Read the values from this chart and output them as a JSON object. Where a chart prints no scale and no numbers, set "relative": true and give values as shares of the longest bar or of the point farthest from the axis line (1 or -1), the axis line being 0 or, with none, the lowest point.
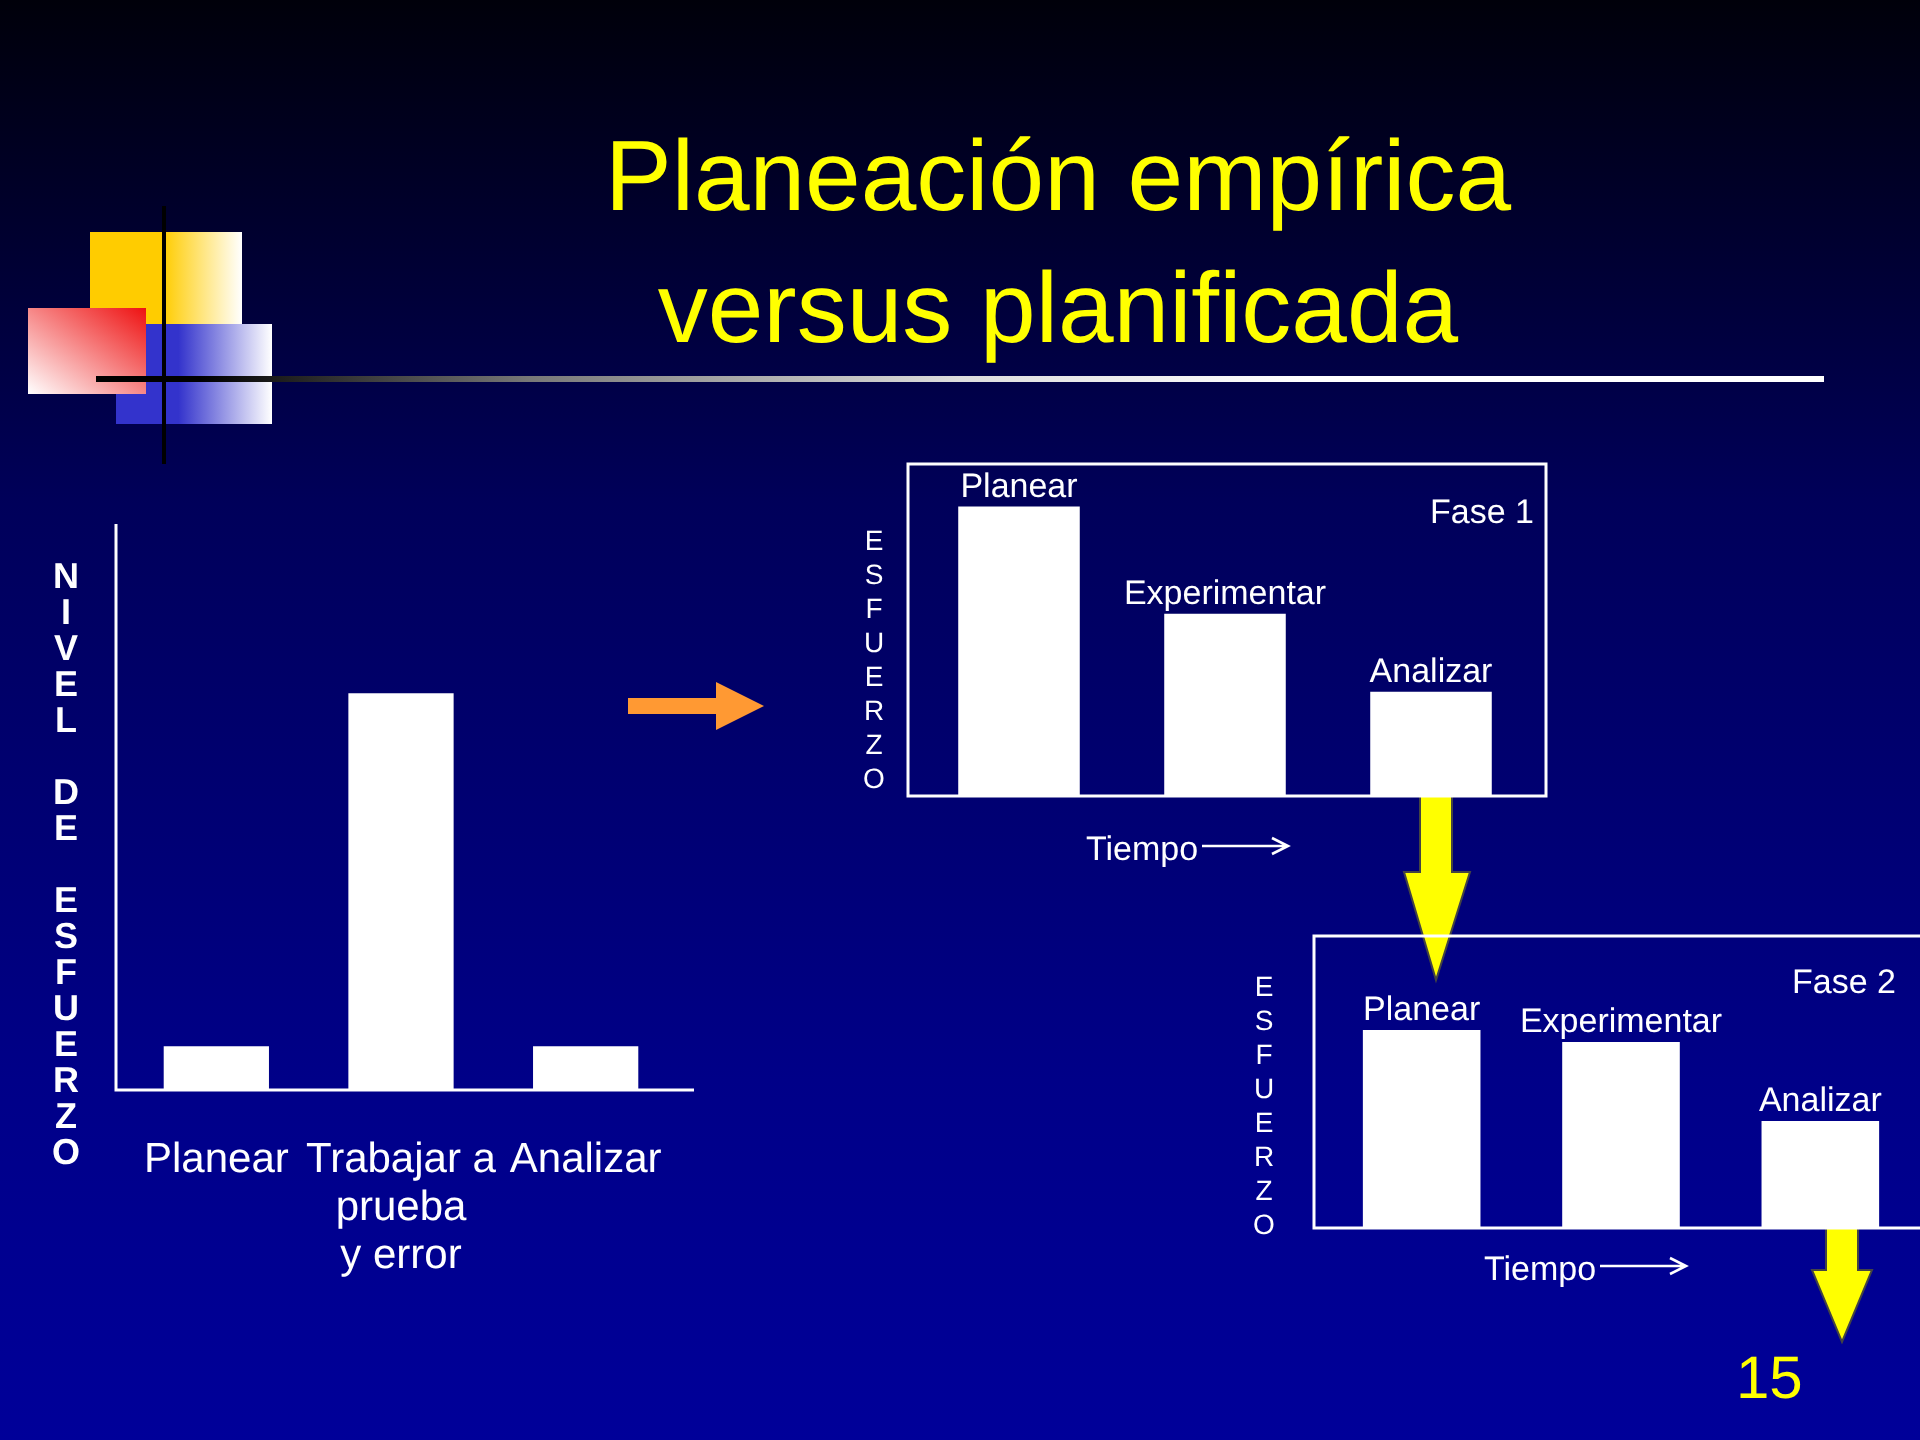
{
  "chart_data": [
    {
      "type": "other",
      "title": "Planeación empírica versus planificada",
      "annotations": [
        "15"
      ]
    },
    {
      "type": "bar",
      "categories": [
        "Planear",
        "Trabajar a\nprueba\ny error",
        "Analizar"
      ],
      "values": [
        0.11,
        1,
        0.11
      ],
      "color": "#ffffff",
      "relative": true,
      "ylabel": "NIVEL DE ESFUERZO"
    },
    {
      "type": "bar",
      "categories": [
        "Planear",
        "Experimentar",
        "Analizar"
      ],
      "values": [
        1,
        0.63,
        0.36
      ],
      "color": "#ffffff",
      "relative": true,
      "xlabel": "Tiempo",
      "ylabel": "ESFUERZO",
      "annotations": [
        "Fase 1"
      ]
    },
    {
      "type": "bar",
      "categories": [
        "Planear",
        "Experimentar",
        "Analizar"
      ],
      "values": [
        1,
        0.94,
        0.54
      ],
      "color": "#ffffff",
      "relative": true,
      "xlabel": "Tiempo",
      "ylabel": "ESFUERZO",
      "annotations": [
        "Fase 2"
      ]
    }
  ]
}
